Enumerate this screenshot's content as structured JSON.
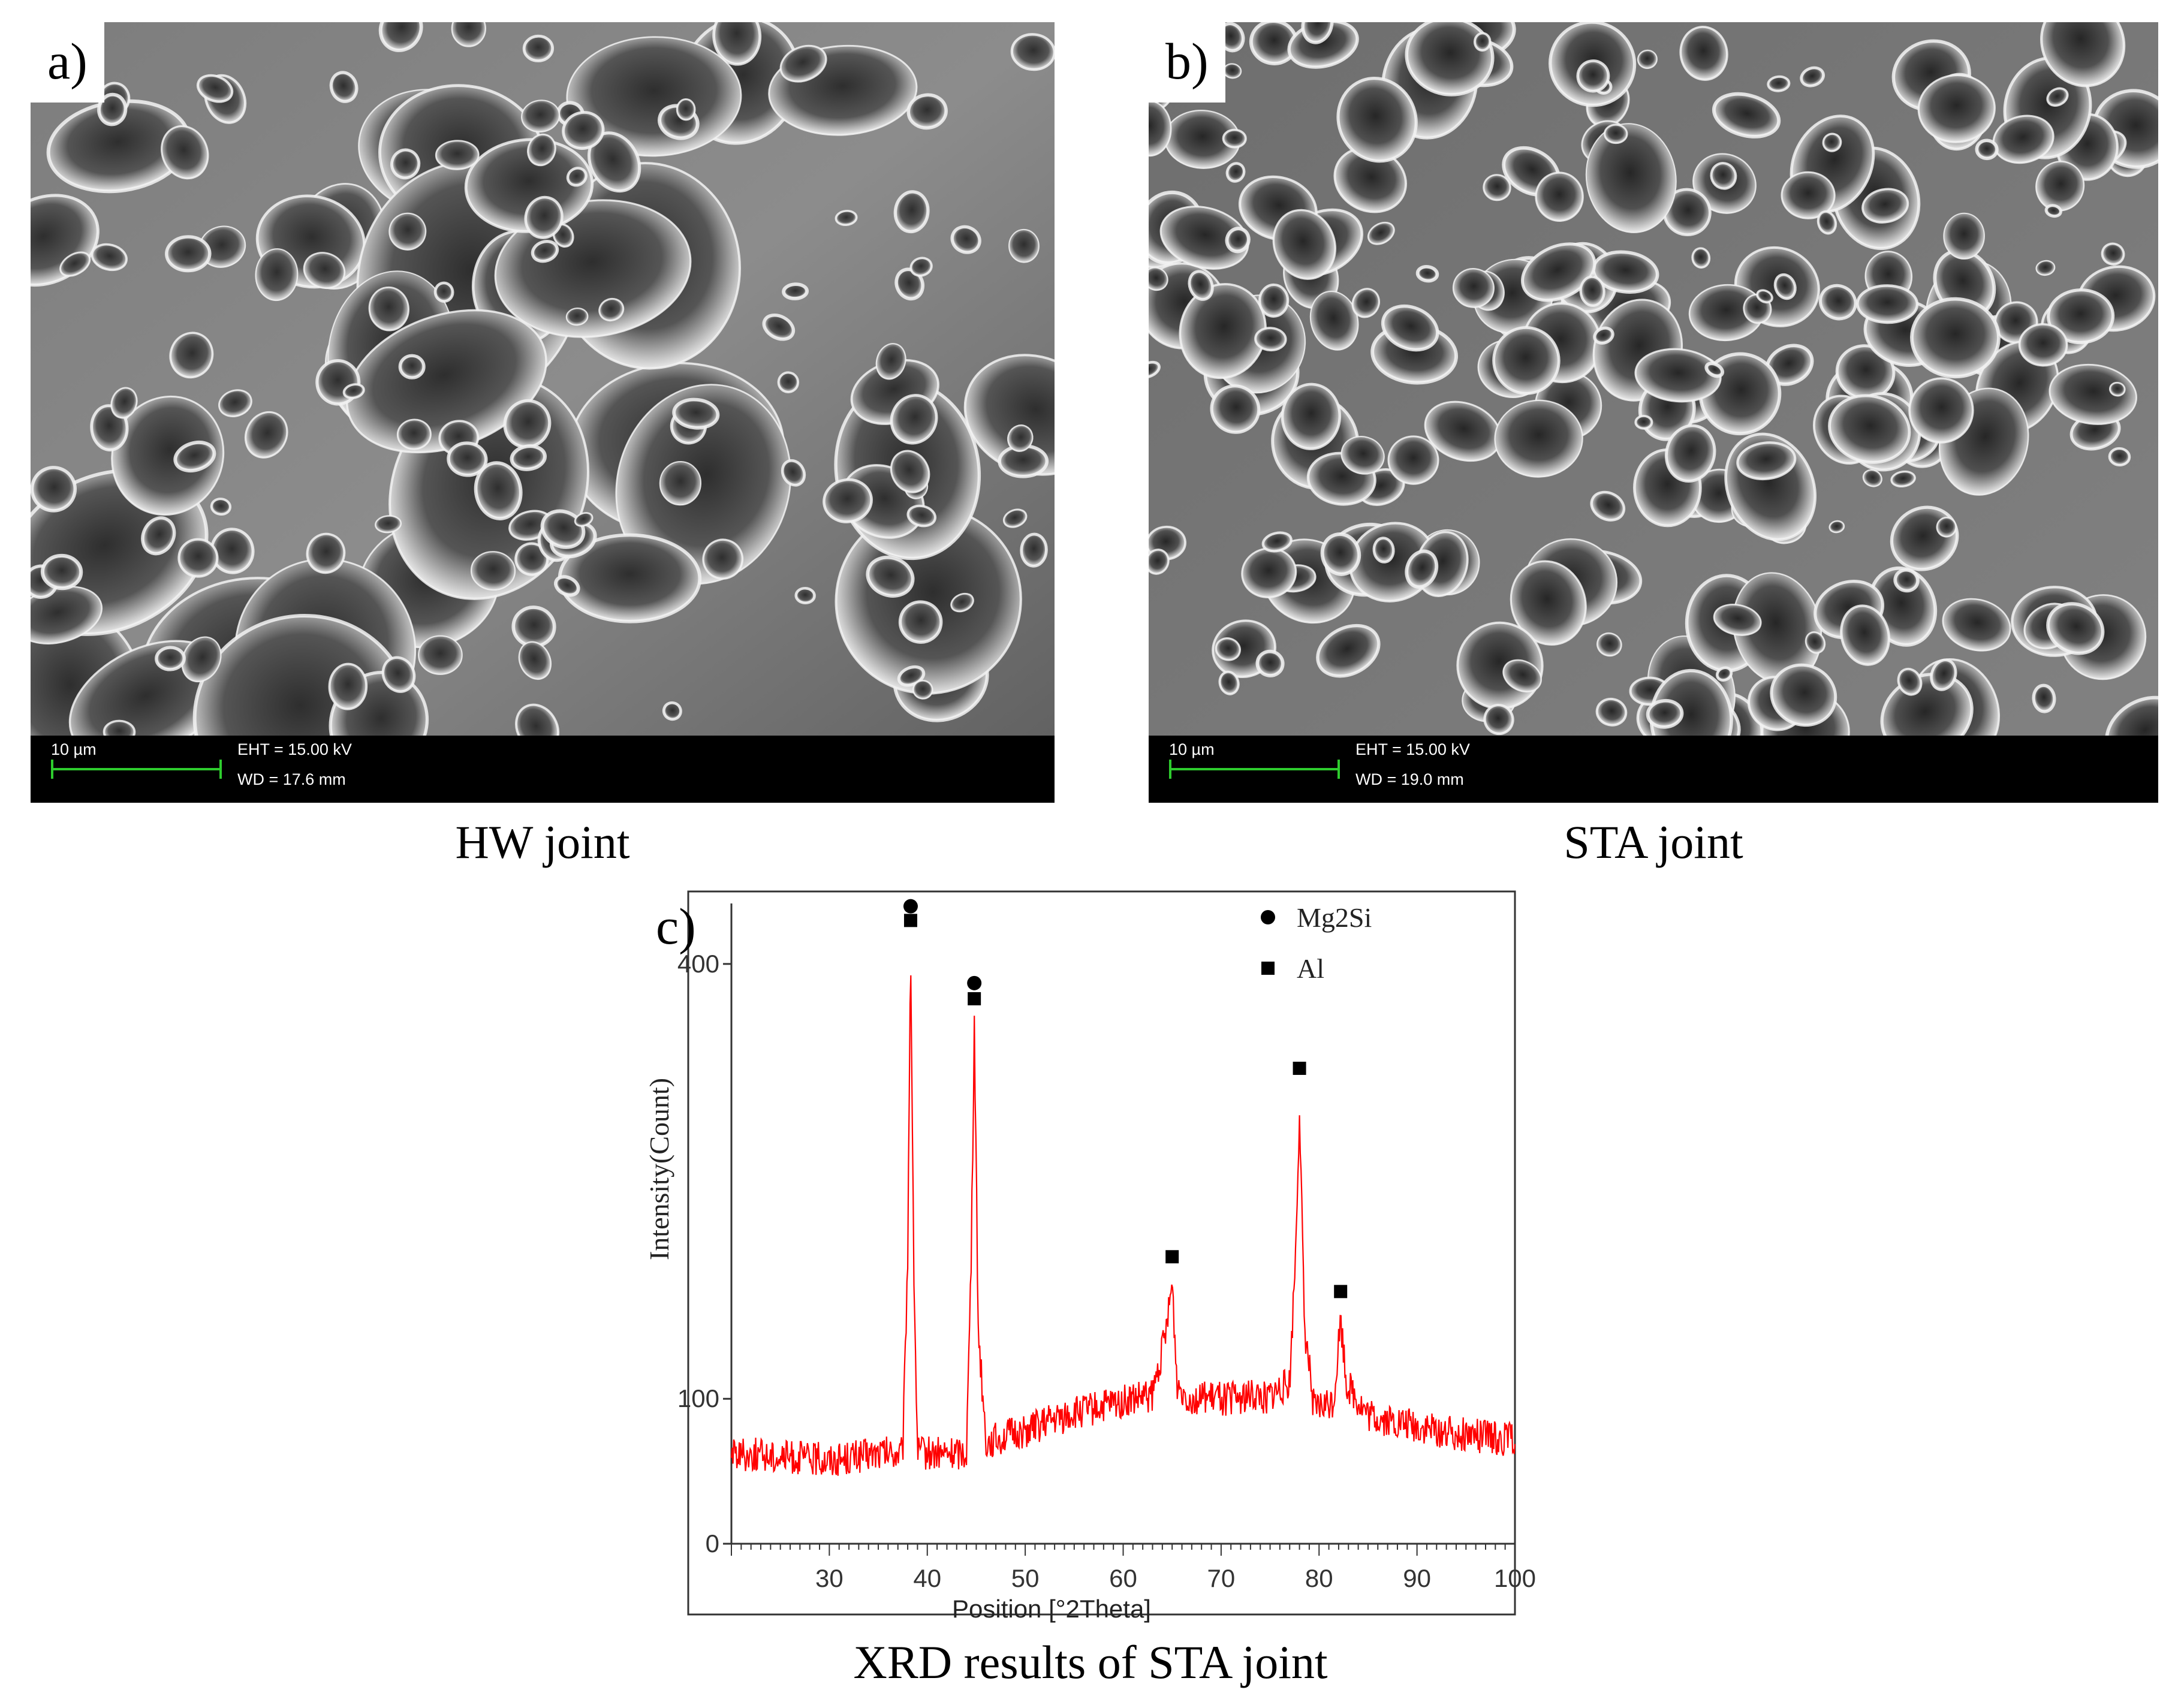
{
  "panels": [
    {
      "letter": "a)",
      "caption": "HW joint",
      "databar": {
        "scale": "10 µm",
        "eht": "EHT = 15.00 kV",
        "wd": "WD = 17.6 mm"
      }
    },
    {
      "letter": "b)",
      "caption": "STA joint",
      "databar": {
        "scale": "10 µm",
        "eht": "EHT = 15.00 kV",
        "wd": "WD = 19.0 mm"
      }
    }
  ],
  "xrd": {
    "letter": "c)",
    "caption": "XRD results of STA joint"
  },
  "chart_data": {
    "type": "line",
    "title": "",
    "xlabel": "Position [°2Theta]",
    "ylabel": "Intensity(Count)",
    "xlim": [
      20,
      100
    ],
    "ylim": [
      0,
      450
    ],
    "xticks": [
      30,
      40,
      50,
      60,
      70,
      80,
      90,
      100
    ],
    "yticks": [
      0,
      100,
      400
    ],
    "series": [
      {
        "color": "#ff0000",
        "x": [
          20,
          25,
          30,
          35,
          37.5,
          38.0,
          38.3,
          38.6,
          39,
          42,
          44,
          44.5,
          44.8,
          45.2,
          46,
          50,
          55,
          60,
          63,
          64.5,
          65.0,
          65.5,
          67,
          70,
          75,
          77,
          77.6,
          78.0,
          78.5,
          79.5,
          81.5,
          82.2,
          82.8,
          85,
          90,
          95,
          100
        ],
        "values": [
          63,
          60,
          58,
          62,
          62,
          200,
          415,
          200,
          63,
          62,
          64,
          200,
          360,
          150,
          70,
          78,
          90,
          98,
          102,
          150,
          180,
          110,
          100,
          100,
          102,
          110,
          200,
          300,
          150,
          92,
          98,
          155,
          110,
          88,
          80,
          75,
          72
        ]
      }
    ],
    "annotations": [
      {
        "marker": "circle",
        "x": 38.3,
        "y": 434
      },
      {
        "marker": "square",
        "x": 38.3,
        "y": 430
      },
      {
        "marker": "circle",
        "x": 44.8,
        "y": 381
      },
      {
        "marker": "square",
        "x": 44.8,
        "y": 376
      },
      {
        "marker": "square",
        "x": 65.0,
        "y": 198
      },
      {
        "marker": "square",
        "x": 78.0,
        "y": 328
      },
      {
        "marker": "square",
        "x": 82.2,
        "y": 174
      }
    ],
    "legend": [
      {
        "marker": "circle",
        "label": "Mg2Si"
      },
      {
        "marker": "square",
        "label": "Al"
      }
    ],
    "legend_position": "top-right"
  }
}
